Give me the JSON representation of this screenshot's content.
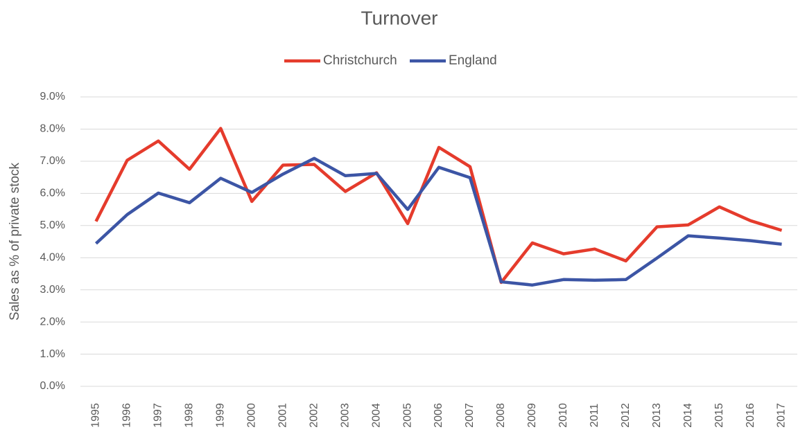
{
  "chart_data": {
    "type": "line",
    "title": "Turnover",
    "y_label": "Sales as % of private stock",
    "categories": [
      "1995",
      "1996",
      "1997",
      "1998",
      "1999",
      "2000",
      "2001",
      "2002",
      "2003",
      "2004",
      "2005",
      "2006",
      "2007",
      "2008",
      "2009",
      "2010",
      "2011",
      "2012",
      "2013",
      "2014",
      "2015",
      "2016",
      "2017"
    ],
    "series": [
      {
        "name": "Christchurch",
        "color": "#e53b2c",
        "values": [
          5.13,
          7.03,
          7.63,
          6.75,
          8.02,
          5.75,
          6.88,
          6.9,
          6.06,
          6.64,
          5.06,
          7.43,
          6.83,
          3.23,
          4.46,
          4.12,
          4.27,
          3.9,
          4.96,
          5.02,
          5.58,
          5.15,
          4.85
        ]
      },
      {
        "name": "England",
        "color": "#3c55a5",
        "values": [
          4.44,
          5.34,
          6.01,
          5.71,
          6.47,
          6.03,
          6.6,
          7.09,
          6.55,
          6.62,
          5.5,
          6.81,
          6.49,
          3.25,
          3.15,
          3.32,
          3.3,
          3.32,
          3.99,
          4.68,
          4.61,
          4.53,
          4.42
        ]
      }
    ],
    "ylim": [
      0,
      9
    ],
    "yticks": [
      {
        "value": 0,
        "label": "0.0%"
      },
      {
        "value": 1,
        "label": "1.0%"
      },
      {
        "value": 2,
        "label": "2.0%"
      },
      {
        "value": 3,
        "label": "3.0%"
      },
      {
        "value": 4,
        "label": "4.0%"
      },
      {
        "value": 5,
        "label": "5.0%"
      },
      {
        "value": 6,
        "label": "6.0%"
      },
      {
        "value": 7,
        "label": "7.0%"
      },
      {
        "value": 8,
        "label": "8.0%"
      },
      {
        "value": 9,
        "label": "9.0%"
      }
    ],
    "grid": true,
    "legend": "top"
  }
}
